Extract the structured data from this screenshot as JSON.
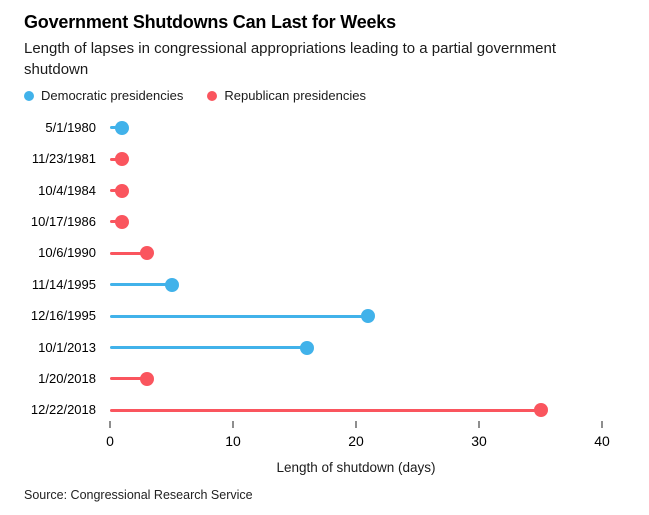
{
  "title": "Government Shutdowns Can Last for Weeks",
  "subtitle": "Length of lapses in congressional appropriations leading to a partial government shutdown",
  "legend": [
    {
      "label": "Democratic presidencies",
      "party": "Democratic",
      "color": "#41b2ea"
    },
    {
      "label": "Republican presidencies",
      "party": "Republican",
      "color": "#fa555e"
    }
  ],
  "chart_data": {
    "type": "lollipop",
    "orientation": "horizontal",
    "categories": [
      "5/1/1980",
      "11/23/1981",
      "10/4/1984",
      "10/17/1986",
      "10/6/1990",
      "11/14/1995",
      "12/16/1995",
      "10/1/2013",
      "1/20/2018",
      "12/22/2018"
    ],
    "values": [
      1,
      1,
      1,
      1,
      3,
      5,
      21,
      16,
      3,
      35
    ],
    "parties": [
      "Democratic",
      "Republican",
      "Republican",
      "Republican",
      "Republican",
      "Democratic",
      "Democratic",
      "Democratic",
      "Republican",
      "Republican"
    ],
    "xlabel": "Length of shutdown (days)",
    "x_ticks": [
      0,
      10,
      20,
      30,
      40
    ],
    "xlim": [
      0,
      40
    ],
    "grid": false,
    "legend_position": "top"
  },
  "source": "Source: Congressional Research Service"
}
